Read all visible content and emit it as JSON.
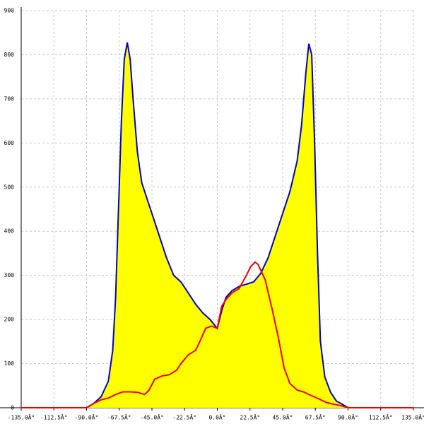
{
  "chart_data": {
    "type": "area",
    "xlim": [
      -135,
      135
    ],
    "ylim": [
      0,
      900
    ],
    "xticks": [
      {
        "value": -135,
        "label": "-135.0Â°"
      },
      {
        "value": -112.5,
        "label": "-112.5Â°"
      },
      {
        "value": -90,
        "label": "-90.0Â°"
      },
      {
        "value": -67.5,
        "label": "-67.5Â°"
      },
      {
        "value": -45,
        "label": "-45.0Â°"
      },
      {
        "value": -22.5,
        "label": "-22.5Â°"
      },
      {
        "value": 0,
        "label": "0.0Â°"
      },
      {
        "value": 22.5,
        "label": "22.5Â°"
      },
      {
        "value": 45,
        "label": "45.0Â°"
      },
      {
        "value": 67.5,
        "label": "67.5Â°"
      },
      {
        "value": 90,
        "label": "90.0Â°"
      },
      {
        "value": 112.5,
        "label": "112.5Â°"
      },
      {
        "value": 135,
        "label": "135.0Â°"
      }
    ],
    "yticks": [
      0,
      100,
      200,
      300,
      400,
      500,
      600,
      700,
      800,
      900
    ],
    "grid": true,
    "series": [
      {
        "color": "#0000cc",
        "fill": "#ffff00",
        "x": [
          -135,
          -90,
          -85,
          -80,
          -75,
          -72,
          -70,
          -68,
          -66,
          -64,
          -62,
          -60,
          -58,
          -55,
          -52,
          -48,
          -45,
          -40,
          -35,
          -30,
          -25,
          -20,
          -15,
          -10,
          -5,
          0,
          3,
          6,
          10,
          15,
          20,
          25,
          30,
          35,
          40,
          45,
          50,
          55,
          58,
          61,
          63,
          65,
          67,
          69,
          71,
          74,
          78,
          82,
          86,
          90,
          135
        ],
        "values": [
          0,
          0,
          10,
          25,
          60,
          130,
          250,
          450,
          650,
          790,
          828,
          790,
          700,
          580,
          510,
          470,
          440,
          390,
          340,
          300,
          285,
          260,
          235,
          215,
          200,
          180,
          220,
          250,
          265,
          275,
          280,
          285,
          305,
          340,
          390,
          440,
          490,
          560,
          640,
          760,
          825,
          800,
          600,
          350,
          150,
          70,
          35,
          15,
          8,
          0,
          0
        ]
      },
      {
        "color": "#ee0000",
        "x": [
          -135,
          -90,
          -85,
          -80,
          -75,
          -70,
          -65,
          -60,
          -55,
          -50,
          -47,
          -43,
          -38,
          -33,
          -28,
          -25,
          -20,
          -15,
          -12,
          -8,
          -4,
          0,
          3,
          6,
          10,
          15,
          20,
          23,
          26,
          28,
          33,
          38,
          42,
          46,
          50,
          55,
          60,
          65,
          70,
          75,
          80,
          85,
          90,
          135
        ],
        "values": [
          0,
          0,
          10,
          18,
          22,
          30,
          36,
          36,
          35,
          30,
          40,
          65,
          72,
          75,
          85,
          100,
          120,
          130,
          150,
          180,
          185,
          180,
          230,
          245,
          260,
          270,
          300,
          320,
          330,
          325,
          290,
          220,
          160,
          90,
          55,
          40,
          35,
          27,
          20,
          12,
          8,
          5,
          0,
          0
        ]
      }
    ]
  }
}
